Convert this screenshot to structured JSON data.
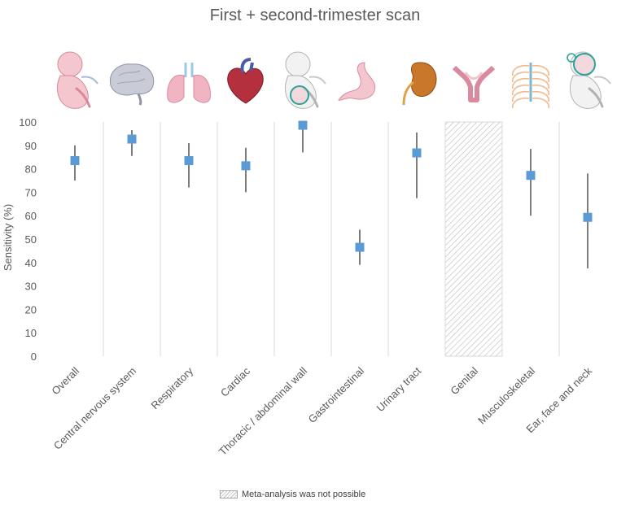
{
  "chart_data": {
    "type": "scatter",
    "title": "First + second-trimester scan",
    "ylabel": "Sensitivity (%)",
    "xlabel": "",
    "ylim": [
      0,
      100
    ],
    "yticks": [
      0,
      10,
      20,
      30,
      40,
      50,
      60,
      70,
      80,
      90,
      100
    ],
    "categories": [
      "Overall",
      "Central nervous system",
      "Respiratory",
      "Cardiac",
      "Thoracic / abdominal wall",
      "Gastrointestinal",
      "Urinary tract",
      "Genital",
      "Musculoskeletal",
      "Ear, face and neck"
    ],
    "points": [
      {
        "category": "Overall",
        "value": 83.5,
        "ci_low": 75,
        "ci_high": 90
      },
      {
        "category": "Central nervous system",
        "value": 92.7,
        "ci_low": 85.5,
        "ci_high": 96.5
      },
      {
        "category": "Respiratory",
        "value": 83.5,
        "ci_low": 72,
        "ci_high": 91
      },
      {
        "category": "Cardiac",
        "value": 81.3,
        "ci_low": 70,
        "ci_high": 89
      },
      {
        "category": "Thoracic / abdominal wall",
        "value": 98.6,
        "ci_low": 87,
        "ci_high": 100
      },
      {
        "category": "Gastrointestinal",
        "value": 46.5,
        "ci_low": 39,
        "ci_high": 54
      },
      {
        "category": "Urinary tract",
        "value": 86.8,
        "ci_low": 67.5,
        "ci_high": 95.5
      },
      {
        "category": "Genital",
        "value": null,
        "ci_low": null,
        "ci_high": null
      },
      {
        "category": "Musculoskeletal",
        "value": 77.2,
        "ci_low": 60,
        "ci_high": 88.5
      },
      {
        "category": "Ear, face and neck",
        "value": 59.3,
        "ci_low": 37.5,
        "ci_high": 78
      }
    ],
    "not_possible": [
      "Genital"
    ],
    "legend": {
      "label": "Meta-analysis was not possible",
      "position": "bottom"
    },
    "grid": false,
    "colors": {
      "marker": "#5b9bd5",
      "whisker": "#262626",
      "divider": "#d9d9d9",
      "hatch": "#bfbfbf",
      "axis_text": "#595959"
    },
    "icons": [
      "fetus-icon",
      "brain-icon",
      "lungs-icon",
      "heart-icon",
      "fetus-abdominal-wall-icon",
      "stomach-icon",
      "kidney-icon",
      "uterus-icon",
      "ribcage-icon",
      "fetus-head-icon"
    ]
  }
}
